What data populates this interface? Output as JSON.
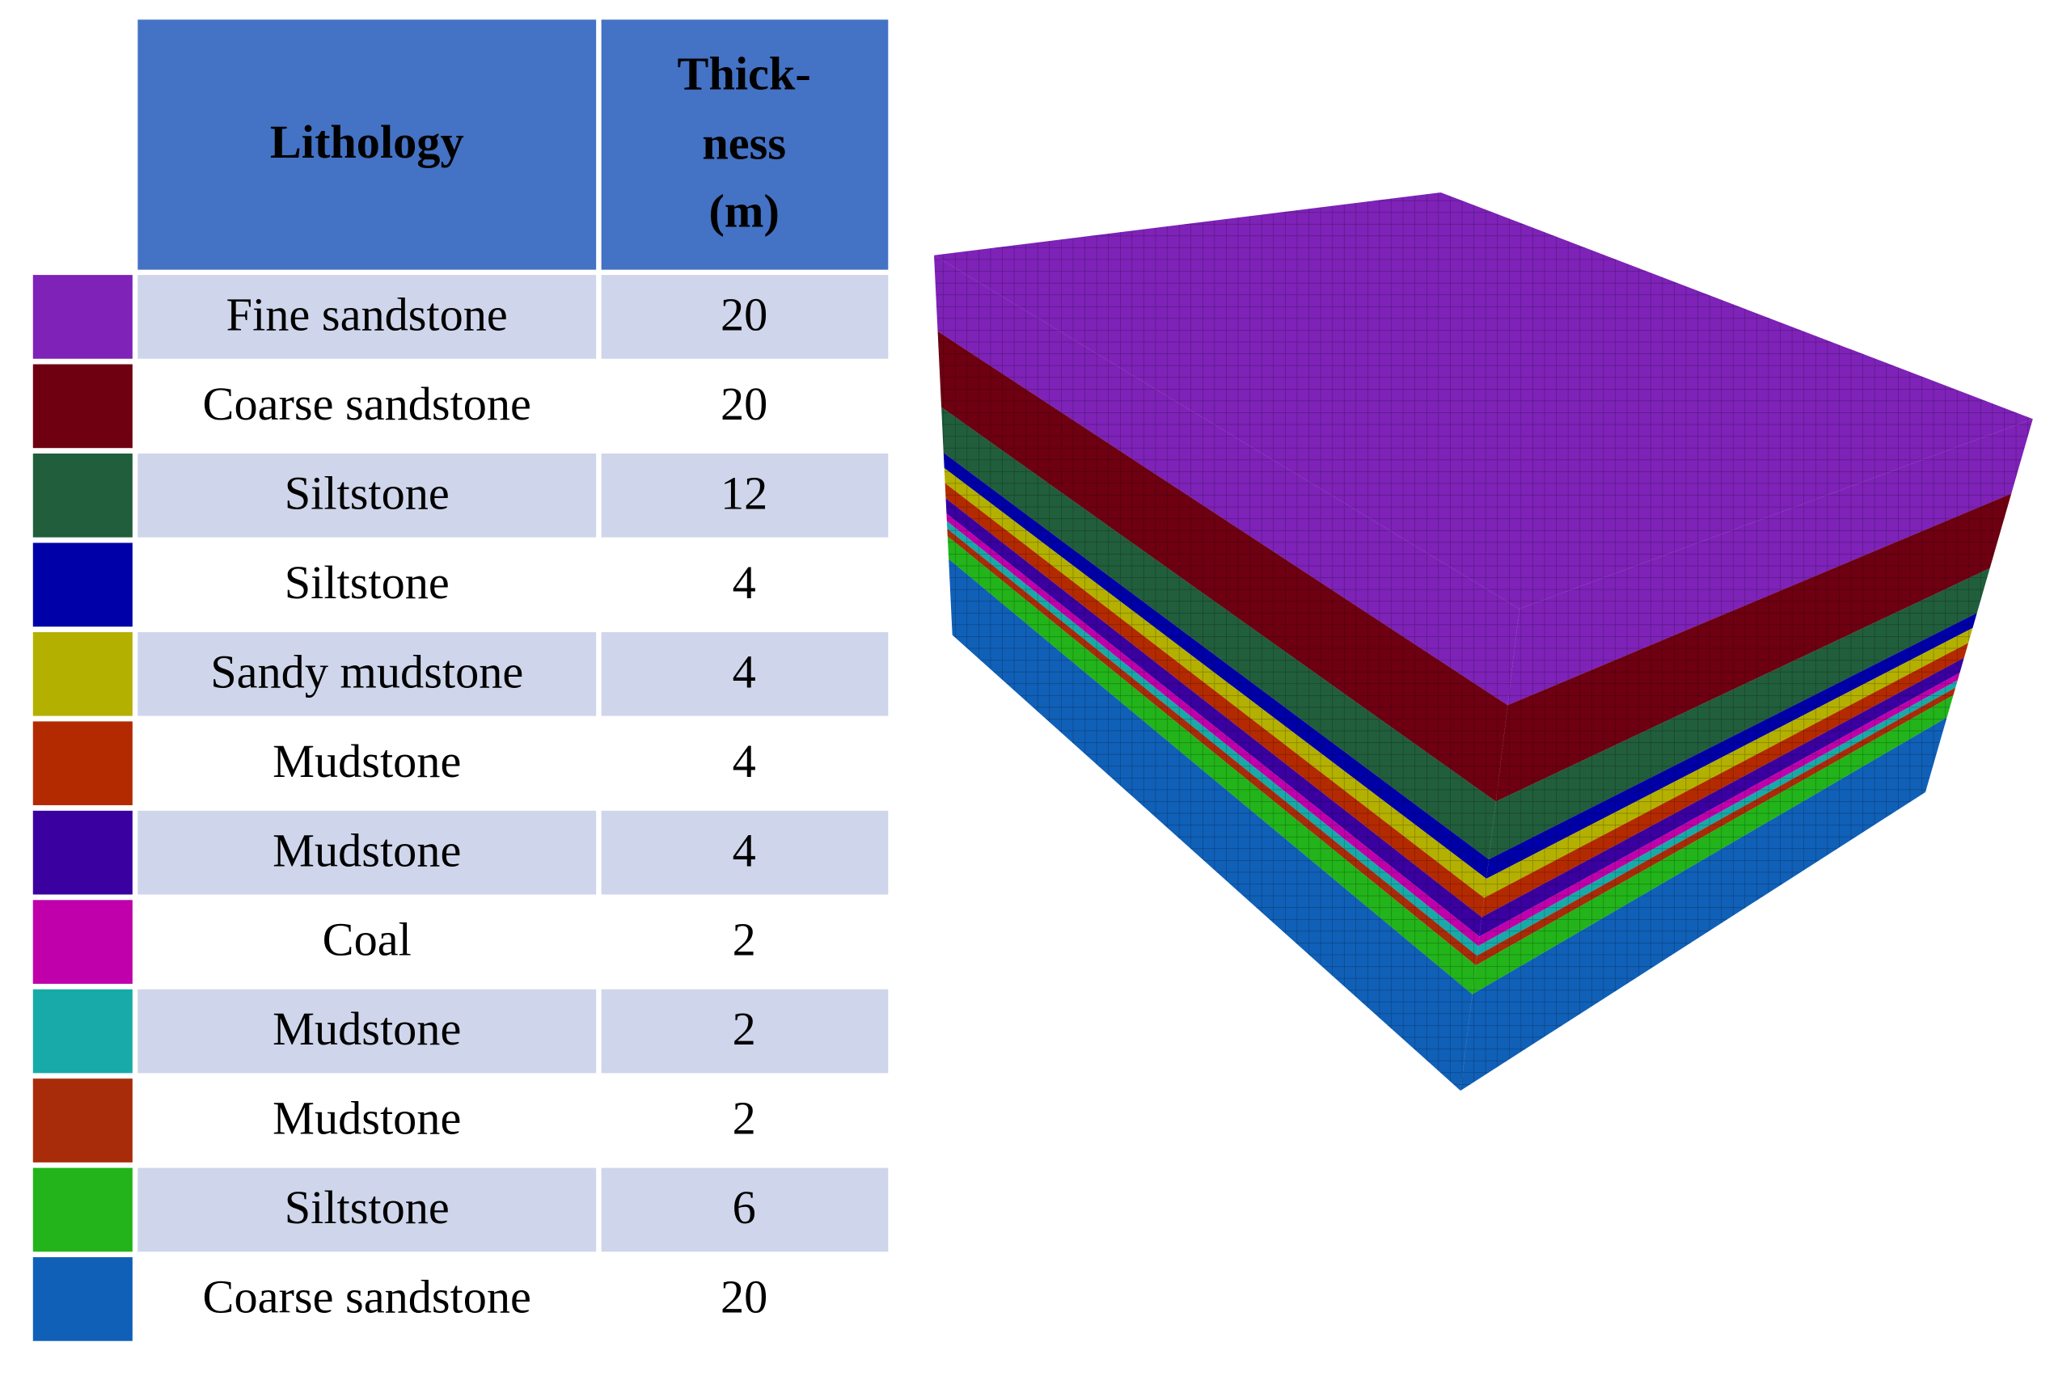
{
  "table": {
    "header": [
      "Lithology",
      [
        "Thick-",
        "ness",
        "(m)"
      ]
    ],
    "rows": [
      {
        "lithology": "Fine sandstone",
        "thickness": 20,
        "color": "#7e22b8"
      },
      {
        "lithology": "Coarse sandstone",
        "thickness": 20,
        "color": "#6e0012"
      },
      {
        "lithology": "Siltstone",
        "thickness": 12,
        "color": "#215e3c"
      },
      {
        "lithology": "Siltstone",
        "thickness": 4,
        "color": "#0000a8"
      },
      {
        "lithology": "Sandy mudstone",
        "thickness": 4,
        "color": "#b4b000"
      },
      {
        "lithology": "Mudstone",
        "thickness": 4,
        "color": "#b42a00"
      },
      {
        "lithology": "Mudstone",
        "thickness": 4,
        "color": "#3a00a0"
      },
      {
        "lithology": "Coal",
        "thickness": 2,
        "color": "#c000aa"
      },
      {
        "lithology": "Mudstone",
        "thickness": 2,
        "color": "#18aaa8"
      },
      {
        "lithology": "Mudstone",
        "thickness": 2,
        "color": "#a82c0a"
      },
      {
        "lithology": "Siltstone",
        "thickness": 6,
        "color": "#22b41a"
      },
      {
        "lithology": "Coarse sandstone",
        "thickness": 20,
        "color": "#1060b8"
      }
    ]
  }
}
